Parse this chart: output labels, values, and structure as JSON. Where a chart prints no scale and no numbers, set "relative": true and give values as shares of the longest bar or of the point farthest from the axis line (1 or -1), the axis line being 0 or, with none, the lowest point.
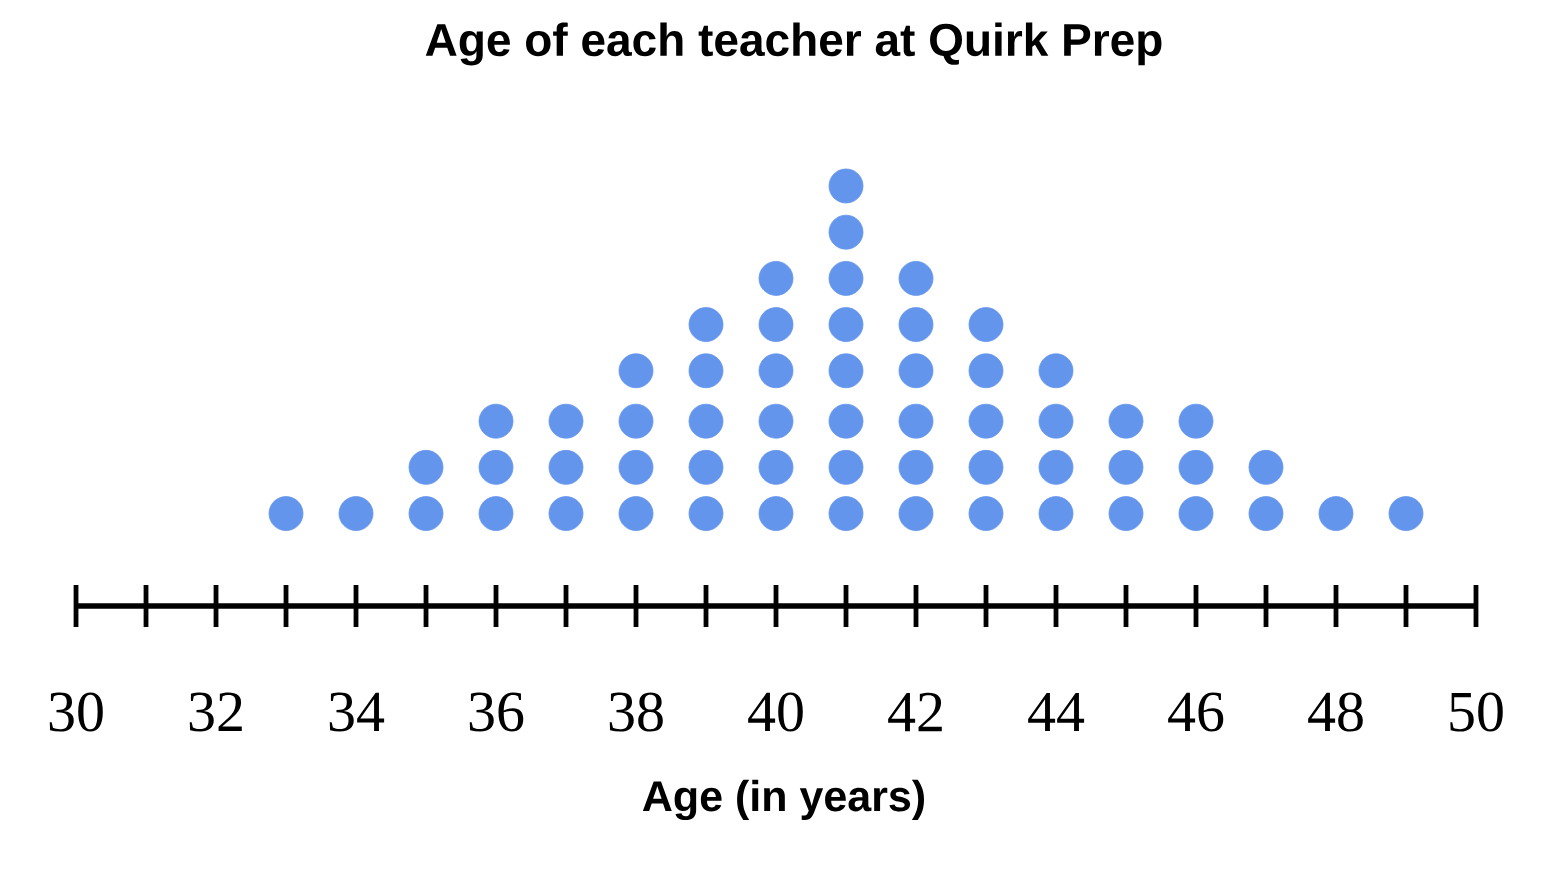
{
  "chart_data": {
    "type": "scatter",
    "title": "Age of each teacher at Quirk Prep",
    "xlabel": "Age (in years)",
    "x": [
      33,
      34,
      35,
      35,
      36,
      36,
      36,
      37,
      37,
      37,
      38,
      38,
      38,
      38,
      39,
      39,
      39,
      39,
      39,
      40,
      40,
      40,
      40,
      40,
      40,
      41,
      41,
      41,
      41,
      41,
      41,
      41,
      41,
      42,
      42,
      42,
      42,
      42,
      42,
      43,
      43,
      43,
      43,
      43,
      44,
      44,
      44,
      44,
      45,
      45,
      45,
      46,
      46,
      46,
      47,
      47,
      48,
      49
    ],
    "values": [
      0.22,
      0.22,
      0.22,
      0.33,
      0.22,
      0.33,
      0.44,
      0.22,
      0.33,
      0.44,
      0.22,
      0.33,
      0.44,
      0.56,
      0.22,
      0.33,
      0.44,
      0.56,
      0.67,
      0.22,
      0.33,
      0.44,
      0.56,
      0.67,
      0.78,
      0.22,
      0.33,
      0.44,
      0.56,
      0.67,
      0.78,
      0.89,
      1,
      0.22,
      0.33,
      0.44,
      0.56,
      0.67,
      0.78,
      0.22,
      0.33,
      0.44,
      0.56,
      0.67,
      0.22,
      0.33,
      0.44,
      0.56,
      0.22,
      0.33,
      0.44,
      0.22,
      0.33,
      0.44,
      0.22,
      0.33,
      0.22,
      0.22
    ],
    "relative": true,
    "color": "#6495ed",
    "xlim": [
      30,
      50
    ],
    "xticks": [
      30,
      {
        "value": 31,
        "label": null
      },
      32,
      {
        "value": 33,
        "label": null
      },
      34,
      {
        "value": 35,
        "label": null
      },
      36,
      {
        "value": 37,
        "label": null
      },
      38,
      {
        "value": 39,
        "label": null
      },
      40,
      {
        "value": 41,
        "label": null
      },
      42,
      {
        "value": 43,
        "label": null
      },
      44,
      {
        "value": 45,
        "label": null
      },
      46,
      {
        "value": 47,
        "label": null
      },
      48,
      {
        "value": 49,
        "label": null
      },
      50
    ],
    "tick_labels": "x"
  }
}
